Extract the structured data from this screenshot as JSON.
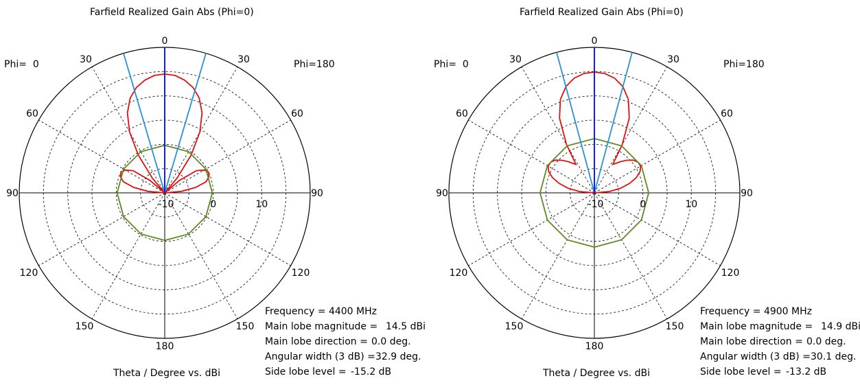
{
  "chart_data": [
    {
      "type": "polar-line",
      "title": "Farfield Realized Gain Abs (Phi=0)",
      "xlabel": "Theta / Degree vs. dBi",
      "side_labels": {
        "left": "Phi=  0",
        "right": "Phi=180"
      },
      "angle_tick_labels": [
        "0",
        "30",
        "60",
        "90",
        "120",
        "150",
        "180",
        "150",
        "120",
        "90",
        "60",
        "30"
      ],
      "radial_tick_labels": [
        "-10",
        "0",
        "10"
      ],
      "radial_range_dbi": [
        -10,
        20
      ],
      "radial_ticks_dbi": [
        -10,
        -5,
        0,
        5,
        10,
        15,
        20
      ],
      "grid": true,
      "series": [
        {
          "color": "#e01010",
          "points": [
            [
              0,
              14.5
            ],
            [
              5,
              14.3
            ],
            [
              10,
              13.6
            ],
            [
              15,
              12.5
            ],
            [
              20,
              10.8
            ],
            [
              25,
              8.2
            ],
            [
              30,
              4.5
            ],
            [
              35,
              -0.5
            ],
            [
              40,
              -6.0
            ],
            [
              45,
              -10.0
            ],
            [
              50,
              -6.0
            ],
            [
              55,
              -2.0
            ],
            [
              60,
              -0.6
            ],
            [
              65,
              0.0
            ],
            [
              70,
              -0.3
            ],
            [
              75,
              -1.2
            ],
            [
              80,
              -3.5
            ],
            [
              85,
              -6.5
            ],
            [
              90,
              -10.0
            ]
          ]
        },
        {
          "color": "#5c8a1e",
          "points": [
            [
              0,
              -0.2
            ],
            [
              30,
              -0.2
            ],
            [
              60,
              -0.2
            ],
            [
              90,
              -0.2
            ],
            [
              120,
              -0.2
            ],
            [
              150,
              -0.2
            ],
            [
              180,
              -0.2
            ]
          ]
        }
      ],
      "main_lobe_direction_deg": 0.0,
      "beam_edges_deg": [
        -16.45,
        16.45
      ],
      "info": {
        "frequency": {
          "label": "Frequency = 4400 MHz"
        },
        "rows": [
          {
            "label": "Main lobe magnitude =",
            "value": "14.5 dBi"
          },
          {
            "label": "Main lobe direction =",
            "value": "0.0 deg."
          },
          {
            "label": "Angular width (3 dB) =",
            "value": "32.9 deg."
          },
          {
            "label": "Side lobe level =",
            "value": "-15.2 dB"
          }
        ]
      }
    },
    {
      "type": "polar-line",
      "title": "Farfield Realized Gain Abs (Phi=0)",
      "xlabel": "Theta / Degree vs. dBi",
      "side_labels": {
        "left": "Phi=  0",
        "right": "Phi=180"
      },
      "angle_tick_labels": [
        "0",
        "30",
        "60",
        "90",
        "120",
        "150",
        "180",
        "150",
        "120",
        "90",
        "60",
        "30"
      ],
      "radial_tick_labels": [
        "-10",
        "0",
        "10"
      ],
      "radial_range_dbi": [
        -10,
        20
      ],
      "radial_ticks_dbi": [
        -10,
        -5,
        0,
        5,
        10,
        15,
        20
      ],
      "grid": true,
      "series": [
        {
          "color": "#e01010",
          "points": [
            [
              0,
              14.9
            ],
            [
              5,
              14.7
            ],
            [
              10,
              14.0
            ],
            [
              15,
              12.7
            ],
            [
              20,
              10.5
            ],
            [
              25,
              7.0
            ],
            [
              30,
              1.5
            ],
            [
              33,
              -3.0
            ],
            [
              36,
              -2.5
            ],
            [
              40,
              -1.6
            ],
            [
              45,
              -0.5
            ],
            [
              50,
              0.5
            ],
            [
              55,
              1.0
            ],
            [
              60,
              1.0
            ],
            [
              65,
              0.4
            ],
            [
              70,
              -0.8
            ],
            [
              75,
              -2.5
            ],
            [
              80,
              -4.5
            ],
            [
              85,
              -7.0
            ],
            [
              90,
              -10.0
            ]
          ]
        },
        {
          "color": "#5c8a1e",
          "points": [
            [
              0,
              1.2
            ],
            [
              30,
              1.2
            ],
            [
              60,
              1.2
            ],
            [
              90,
              1.2
            ],
            [
              120,
              1.2
            ],
            [
              150,
              1.2
            ],
            [
              180,
              1.2
            ]
          ]
        }
      ],
      "main_lobe_direction_deg": 0.0,
      "beam_edges_deg": [
        -15.05,
        15.05
      ],
      "info": {
        "frequency": {
          "label": "Frequency = 4900 MHz"
        },
        "rows": [
          {
            "label": "Main lobe magnitude =",
            "value": "14.9 dBi"
          },
          {
            "label": "Main lobe direction =",
            "value": "0.0 deg."
          },
          {
            "label": "Angular width (3 dB) =",
            "value": "30.1 deg."
          },
          {
            "label": "Side lobe level =",
            "value": "-13.2 dB"
          }
        ]
      }
    }
  ]
}
